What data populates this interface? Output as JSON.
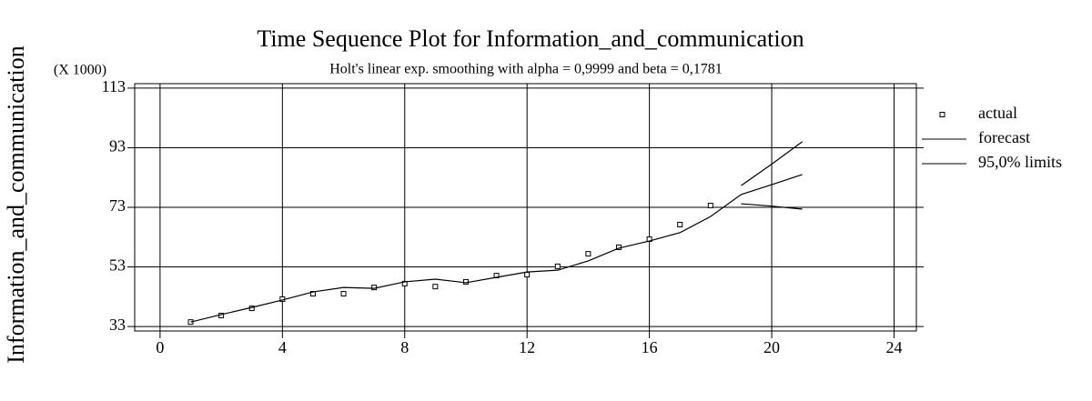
{
  "chart_data": {
    "type": "line",
    "title": "Time Sequence Plot for Information_and_communication",
    "subtitle": "Holt's linear exp. smoothing with alpha = 0,9999 and beta = 0,1781",
    "y_label": "Information_and_communication",
    "y_unit": "(X 1000)",
    "x": [
      1,
      2,
      3,
      4,
      5,
      6,
      7,
      8,
      9,
      10,
      11,
      12,
      13,
      14,
      15,
      16,
      17,
      18,
      19,
      20,
      21
    ],
    "series": [
      {
        "name": "actual",
        "color": "#000000",
        "marker": "square",
        "values": [
          34.5,
          36.7,
          39.1,
          42.2,
          44.0,
          44.0,
          46.1,
          47.4,
          46.4,
          48.0,
          50.1,
          50.4,
          53.2,
          57.4,
          59.6,
          62.3,
          67.2,
          73.6,
          null,
          null,
          null
        ]
      },
      {
        "name": "forecast",
        "color": "#000000",
        "values": [
          34.5,
          37.0,
          39.4,
          41.9,
          44.6,
          46.1,
          45.8,
          48.0,
          48.9,
          47.7,
          49.5,
          51.3,
          51.9,
          55.0,
          59.3,
          61.7,
          64.5,
          69.9,
          77.3,
          80.6,
          84.0
        ]
      },
      {
        "name": "95,0% limits",
        "color": "#000000",
        "values": [
          null,
          null,
          null,
          null,
          null,
          null,
          null,
          null,
          null,
          null,
          null,
          null,
          null,
          null,
          null,
          null,
          null,
          null,
          80.3,
          87.5,
          95.0
        ],
        "lower": [
          null,
          null,
          null,
          null,
          null,
          null,
          null,
          null,
          null,
          null,
          null,
          null,
          null,
          null,
          null,
          null,
          null,
          null,
          74.2,
          73.4,
          72.4
        ]
      }
    ],
    "xlim": [
      -0.83,
      24.73
    ],
    "xticks": [
      0,
      4,
      8,
      12,
      16,
      20,
      24
    ],
    "ylim": [
      31.5,
      114.5
    ],
    "yticks": [
      33,
      53,
      73,
      93,
      113
    ],
    "grid": true,
    "legend": "right"
  }
}
